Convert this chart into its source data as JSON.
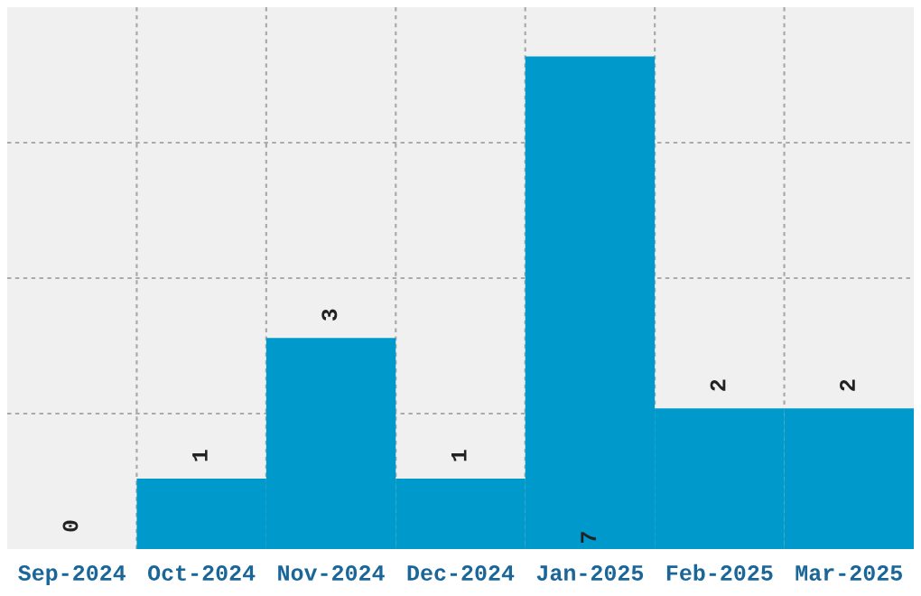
{
  "chart_data": {
    "type": "bar",
    "categories": [
      "Sep-2024",
      "Oct-2024",
      "Nov-2024",
      "Dec-2024",
      "Jan-2025",
      "Feb-2025",
      "Mar-2025"
    ],
    "values": [
      0,
      1,
      3,
      1,
      7,
      2,
      2
    ],
    "color": "#0099cc",
    "ylim": [
      0,
      7.7
    ],
    "yticks": [
      {
        "value": 1.925,
        "label": null
      },
      {
        "value": 3.85,
        "label": null
      },
      {
        "value": 5.775,
        "label": null
      }
    ],
    "tick_labels": "x",
    "grid": true,
    "data_labels": true
  }
}
